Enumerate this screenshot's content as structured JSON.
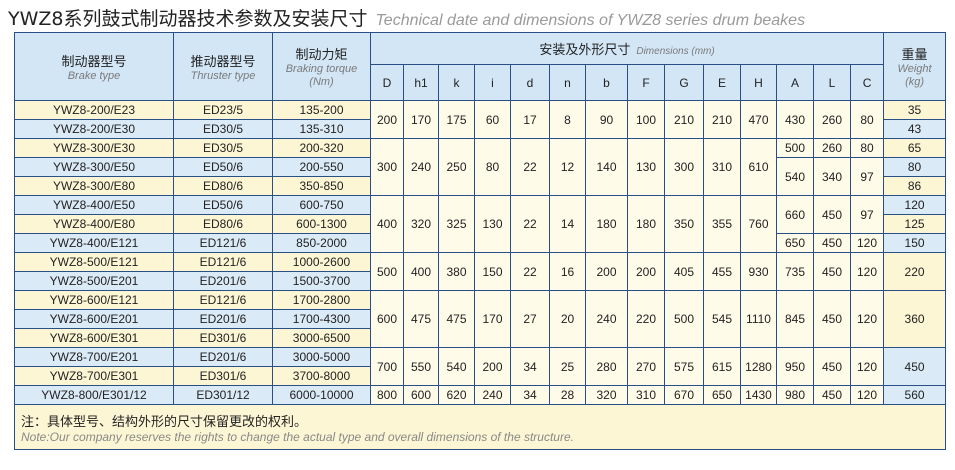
{
  "title": "YWZ8系列鼓式制动器技术参数及安装尺寸",
  "subtitle": "Technical date and dimensions of YWZ8 series drum beakes",
  "table": {
    "headers": {
      "brake_type": {
        "zh": "制动器型号",
        "en": "Brake type"
      },
      "thruster_type": {
        "zh": "推动器型号",
        "en": "Thruster type"
      },
      "braking_torque": {
        "zh": "制动力矩",
        "en": "Braking torque (Nm)"
      },
      "dimensions": {
        "zh": "安装及外形尺寸",
        "en": "Dimensions (mm)"
      },
      "weight": {
        "zh": "重量",
        "en": "Weight (kg)"
      }
    },
    "dimension_columns": [
      "D",
      "h1",
      "k",
      "i",
      "d",
      "n",
      "b",
      "F",
      "G",
      "E",
      "H",
      "A",
      "L",
      "C"
    ],
    "rows": [
      [
        "YWZ8-200/E23",
        "ED23/5",
        "135-200"
      ],
      [
        "YWZ8-200/E30",
        "ED30/5",
        "135-310"
      ],
      [
        "YWZ8-300/E30",
        "ED30/5",
        "200-320"
      ],
      [
        "YWZ8-300/E50",
        "ED50/6",
        "200-550"
      ],
      [
        "YWZ8-300/E80",
        "ED80/6",
        "350-850"
      ],
      [
        "YWZ8-400/E50",
        "ED50/6",
        "600-750"
      ],
      [
        "YWZ8-400/E80",
        "ED80/6",
        "600-1300"
      ],
      [
        "YWZ8-400/E121",
        "ED121/6",
        "850-2000"
      ],
      [
        "YWZ8-500/E121",
        "ED121/6",
        "1000-2600"
      ],
      [
        "YWZ8-500/E201",
        "ED201/6",
        "1500-3700"
      ],
      [
        "YWZ8-600/E121",
        "ED121/6",
        "1700-2800"
      ],
      [
        "YWZ8-600/E201",
        "ED201/6",
        "1700-4300"
      ],
      [
        "YWZ8-600/E301",
        "ED301/6",
        "3000-6500"
      ],
      [
        "YWZ8-700/E201",
        "ED201/6",
        "3000-5000"
      ],
      [
        "YWZ8-700/E301",
        "ED301/6",
        "3700-8000"
      ],
      [
        "YWZ8-800/E301/12",
        "ED301/12",
        "6000-10000"
      ]
    ],
    "dimension_groups": [
      [
        200,
        170,
        175,
        60,
        17,
        8,
        90,
        100,
        210,
        210,
        470
      ],
      [
        300,
        240,
        250,
        80,
        22,
        12,
        140,
        130,
        300,
        310,
        610
      ],
      [
        400,
        320,
        325,
        130,
        22,
        14,
        180,
        180,
        350,
        355,
        760
      ],
      [
        500,
        400,
        380,
        150,
        22,
        16,
        200,
        200,
        405,
        455,
        930
      ],
      [
        600,
        475,
        475,
        170,
        27,
        20,
        240,
        220,
        500,
        545,
        1110
      ],
      [
        700,
        550,
        540,
        200,
        34,
        25,
        280,
        270,
        575,
        615,
        1280
      ],
      [
        800,
        600,
        620,
        240,
        34,
        28,
        320,
        310,
        670,
        650,
        1430
      ]
    ],
    "alc_groups": [
      [
        430,
        260,
        80
      ],
      [
        500,
        260,
        80
      ],
      [
        540,
        340,
        97
      ],
      [
        660,
        450,
        97
      ],
      [
        650,
        450,
        120
      ],
      [
        735,
        450,
        120
      ],
      [
        845,
        450,
        120
      ],
      [
        950,
        450,
        120
      ],
      [
        980,
        450,
        120
      ]
    ],
    "weights": [
      35,
      43,
      65,
      80,
      86,
      120,
      125,
      150,
      220,
      360,
      450,
      560
    ]
  },
  "note": {
    "zh": "注：具体型号、结构外形的尺寸保留更改的权利。",
    "en": "Note:Our company reserves the rights to change the actual type and overall dimensions of the structure."
  }
}
